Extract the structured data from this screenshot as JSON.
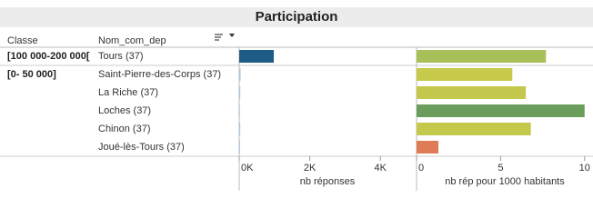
{
  "chart_data": {
    "type": "bar",
    "title": "Participation",
    "row_headers": [
      "Classe",
      "Nom_com_dep"
    ],
    "classes": [
      "[100 000-200 000[",
      "[0- 50 000]",
      null,
      null,
      null,
      null
    ],
    "categories": [
      "Tours (37)",
      "Saint-Pierre-des-Corps (37)",
      "La Riche (37)",
      "Loches (37)",
      "Chinon (37)",
      "Joué-lès-Tours (37)"
    ],
    "panels": [
      {
        "x_label": "nb réponses",
        "xlim": [
          0,
          5000
        ],
        "xticks": [
          {
            "value": 0,
            "label": "0K"
          },
          {
            "value": 2000,
            "label": "2K"
          },
          {
            "value": 4000,
            "label": "4K"
          }
        ],
        "values": [
          980,
          40,
          30,
          20,
          30,
          25
        ],
        "colors": [
          "#1f5b87",
          "#a9c6de",
          "#a9c6de",
          "#a9c6de",
          "#a9c6de",
          "#a9c6de"
        ]
      },
      {
        "x_label": "nb rép pour 1000 habitants",
        "xlim": [
          0,
          10.5
        ],
        "xticks": [
          0,
          5,
          10
        ],
        "values": [
          7.7,
          5.7,
          6.5,
          10.0,
          6.8,
          1.3
        ],
        "colors": [
          "#a8c05a",
          "#c7c94b",
          "#c4c84c",
          "#6b9e5d",
          "#c4c84c",
          "#df7b55"
        ]
      }
    ]
  }
}
